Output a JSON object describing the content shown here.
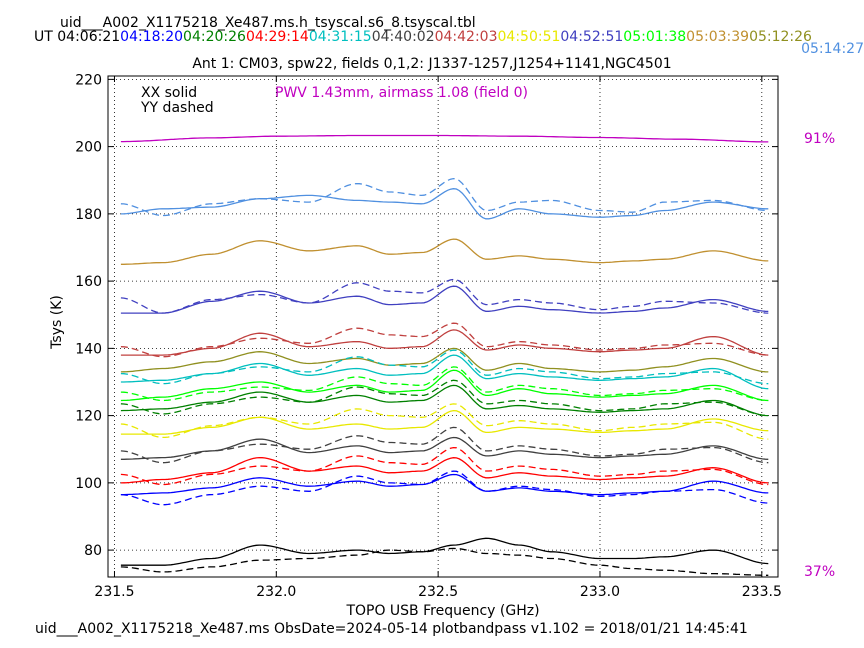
{
  "header": {
    "title": "uid___A002_X1175218_Xe487.ms.h_tsyscal.s6_8.tsyscal.tbl",
    "ut_prefix": "UT",
    "ut_times": [
      {
        "label": "04:06:21",
        "color": "#000000"
      },
      {
        "label": "04:18:20",
        "color": "#0000ff"
      },
      {
        "label": "04:20:26",
        "color": "#008000"
      },
      {
        "label": "04:29:14",
        "color": "#ff0000"
      },
      {
        "label": "04:31:15",
        "color": "#00bfbf"
      },
      {
        "label": "04:40:02",
        "color": "#404040"
      },
      {
        "label": "04:42:03",
        "color": "#c0403f"
      },
      {
        "label": "04:50:51",
        "color": "#e8e800"
      },
      {
        "label": "04:52:51",
        "color": "#4040c0"
      },
      {
        "label": "05:01:38",
        "color": "#00ff00"
      },
      {
        "label": "05:03:39",
        "color": "#c09030"
      },
      {
        "label": "05:12:26",
        "color": "#909020"
      }
    ],
    "last_ut": {
      "label": "05:14:27",
      "color": "#5090e0"
    }
  },
  "footer": "uid___A002_X1175218_Xe487.ms  ObsDate=2024-05-14   plotbandpass v1.102 = 2018/01/21 14:45:41",
  "chart_data": {
    "type": "line",
    "title": "Ant 1: CM03,  spw22,  fields 0,1,2: J1337-1257,J1254+1141,NGC4501",
    "xlabel": "TOPO USB Frequency (GHz)",
    "ylabel": "Tsys (K)",
    "xlim": [
      231.48,
      233.55
    ],
    "ylim": [
      72,
      221
    ],
    "xticks": [
      231.5,
      232.0,
      232.5,
      233.0,
      233.5
    ],
    "xtick_labels": [
      "231.5",
      "232.0",
      "232.5",
      "233.0",
      "233.5"
    ],
    "yticks": [
      80,
      100,
      120,
      140,
      160,
      180,
      200,
      220
    ],
    "ytick_labels": [
      "80",
      "100",
      "120",
      "140",
      "160",
      "180",
      "200",
      "220"
    ],
    "grid": true,
    "legend": [
      "XX solid",
      "YY dashed"
    ],
    "pwv_annotation": {
      "text": "PWV 1.43mm, airmass 1.08 (field 0)",
      "color": "#c000c0"
    },
    "atm_transmission": {
      "label_max": "91%",
      "label_min": "37%",
      "color": "#c000c0",
      "x": [
        231.52,
        231.8,
        232.0,
        232.25,
        232.5,
        232.75,
        233.0,
        233.25,
        233.52
      ],
      "y": [
        201.5,
        202.6,
        203.1,
        203.3,
        203.3,
        203.1,
        202.7,
        202.2,
        201.4
      ]
    },
    "series": [
      {
        "name": "05:14:27",
        "color": "#5090e0",
        "xx": [
          180,
          181.5,
          182,
          184.5,
          185.5,
          184,
          183.5,
          183,
          187.5,
          178.5,
          181.5,
          180,
          179,
          179.5,
          181,
          183.5,
          181.5
        ],
        "yy": [
          183,
          179.5,
          183,
          184.5,
          183.5,
          189,
          186.5,
          185.5,
          190.5,
          181,
          183.5,
          184,
          181,
          180.5,
          183.5,
          184,
          181
        ]
      },
      {
        "name": "05:03:39",
        "color": "#c09030",
        "xx": [
          165,
          165.5,
          168,
          172,
          169,
          170.5,
          168,
          168.5,
          172.5,
          166.5,
          167.5,
          166.5,
          165.5,
          166,
          166.5,
          169,
          166
        ]
      },
      {
        "name": "04:52:51",
        "color": "#4040c0",
        "xx": [
          150.5,
          150.5,
          154,
          157,
          153.5,
          155.5,
          153,
          153.5,
          158.5,
          151,
          152.5,
          151.5,
          150.5,
          151,
          152,
          154.5,
          151
        ],
        "yy": [
          155,
          150.5,
          154.5,
          156,
          153.5,
          159.5,
          157,
          156.5,
          160.5,
          153,
          154.5,
          153.5,
          151.5,
          152.5,
          154,
          153.5,
          150.5
        ]
      },
      {
        "name": "04:42:03",
        "color": "#c0403f",
        "xx": [
          138,
          138,
          140,
          144.5,
          140.5,
          142,
          140,
          140.5,
          145.5,
          139.5,
          141,
          140,
          139,
          139.5,
          140,
          143.5,
          138
        ],
        "yy": [
          140.5,
          137.5,
          140.5,
          143,
          141.5,
          146,
          144,
          143.5,
          147.5,
          140.5,
          142,
          141,
          139.5,
          140,
          141,
          141.5,
          138
        ]
      },
      {
        "name": "05:12:26",
        "color": "#909020",
        "xx": [
          133,
          134,
          136,
          139,
          135.5,
          137,
          135,
          135.5,
          140,
          133.5,
          135.5,
          134,
          133,
          133.5,
          134.5,
          137,
          133
        ]
      },
      {
        "name": "04:31:15",
        "color": "#00bfbf",
        "xx": [
          130,
          130.5,
          132.5,
          135.5,
          132,
          134,
          132,
          132.5,
          138,
          131,
          132.5,
          131.5,
          130.5,
          131,
          131.5,
          134,
          128
        ],
        "yy": [
          132.5,
          129.5,
          132.5,
          134.5,
          133,
          137.5,
          135,
          134.5,
          139.5,
          132,
          134,
          133,
          131,
          131.5,
          132.5,
          133,
          129.5
        ]
      },
      {
        "name": "05:01:38",
        "color": "#00ff00",
        "xx": [
          124.5,
          125.5,
          128,
          130,
          127,
          129,
          127,
          127.5,
          133.5,
          126,
          128,
          126.5,
          125.5,
          126,
          126.5,
          129,
          124.5
        ],
        "yy": [
          127,
          124.5,
          127,
          128.5,
          127.5,
          131.5,
          129.5,
          129,
          134.5,
          127,
          129,
          128,
          126,
          126.5,
          127.5,
          128,
          124.5
        ]
      },
      {
        "name": "04:20:26",
        "color": "#008000",
        "xx": [
          121.5,
          122,
          124,
          127,
          124,
          126,
          124,
          124.5,
          129,
          122,
          123,
          122,
          121,
          121.5,
          122,
          124.5,
          120
        ],
        "yy": [
          123.5,
          120.5,
          123.5,
          125.5,
          124,
          128.5,
          126.5,
          126,
          130.5,
          123.5,
          124.5,
          123.5,
          121.5,
          122,
          123.5,
          124,
          120
        ]
      },
      {
        "name": "04:50:51",
        "color": "#e8e800",
        "xx": [
          114.5,
          114.5,
          116.5,
          119.5,
          116,
          117.5,
          116,
          116.5,
          121.5,
          115,
          116.5,
          116,
          115,
          115.5,
          116,
          119,
          115.5
        ],
        "yy": [
          117.5,
          113.5,
          117,
          119.5,
          117.5,
          122,
          120,
          119.5,
          123.5,
          117,
          118.5,
          117.5,
          115.5,
          116.5,
          117.5,
          118,
          113
        ]
      },
      {
        "name": "04:40:02",
        "color": "#404040",
        "xx": [
          107,
          107.5,
          109.5,
          113,
          109,
          111,
          109,
          109.5,
          113.5,
          108,
          109.5,
          108.5,
          107.5,
          108,
          108.5,
          111,
          107
        ],
        "yy": [
          109.5,
          106,
          109.5,
          111.5,
          110,
          114,
          112,
          111.5,
          116.5,
          109.5,
          111,
          110,
          108,
          108.5,
          110,
          110.5,
          106
        ]
      },
      {
        "name": "04:29:14",
        "color": "#ff0000",
        "xx": [
          100,
          101,
          103,
          107.5,
          103.5,
          105,
          103,
          103.5,
          107.5,
          101.5,
          103,
          102,
          101,
          101.5,
          102,
          104.5,
          100
        ],
        "yy": [
          102.5,
          99.5,
          102.5,
          105,
          103.5,
          108,
          106,
          105.5,
          110.5,
          103.5,
          105,
          104,
          102,
          102.5,
          103.5,
          104,
          99.5
        ]
      },
      {
        "name": "04:18:20",
        "color": "#0000ff",
        "xx": [
          96.5,
          97,
          98.5,
          101.5,
          99,
          100.5,
          99,
          99.5,
          102.5,
          97.5,
          98.5,
          97.5,
          96.5,
          97,
          97.5,
          100.5,
          97
        ],
        "yy": [
          96.5,
          93.5,
          96.5,
          99,
          97.5,
          102,
          100,
          99.5,
          103.5,
          97.5,
          99,
          98,
          96,
          96.5,
          97.5,
          98,
          94
        ]
      },
      {
        "name": "04:06:21",
        "color": "#000000",
        "xx": [
          75.5,
          75.5,
          77.5,
          81.5,
          79,
          80,
          79,
          79.5,
          81.5,
          83.5,
          81.5,
          79.5,
          77.5,
          77.5,
          78,
          80,
          76
        ],
        "yy": [
          75,
          73.5,
          75,
          77,
          77.5,
          78.5,
          80,
          79.5,
          80.5,
          79,
          78.5,
          77.5,
          75.5,
          74.5,
          74,
          73,
          72.5
        ]
      }
    ],
    "series_x": [
      231.52,
      231.65,
      231.8,
      231.95,
      232.1,
      232.25,
      232.35,
      232.45,
      232.55,
      232.65,
      232.75,
      232.85,
      233.0,
      233.1,
      233.2,
      233.35,
      233.52
    ]
  }
}
